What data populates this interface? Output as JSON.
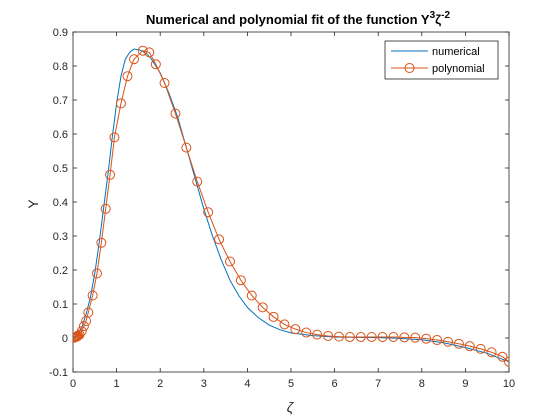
{
  "chart_data": {
    "type": "line",
    "title": "Numerical and polynomial fit of the function Y³ζ⁻²",
    "title_parts": {
      "base": "Numerical and polynomial fit of the function Y",
      "sup1": "3",
      "mid": "ζ",
      "sup2": "-2"
    },
    "xlabel": "ζ",
    "ylabel": "Y",
    "xlim": [
      0,
      10
    ],
    "ylim": [
      -0.1,
      0.9
    ],
    "xticks": [
      0,
      1,
      2,
      3,
      4,
      5,
      6,
      7,
      8,
      9,
      10
    ],
    "yticks": [
      -0.1,
      0,
      0.1,
      0.2,
      0.3,
      0.4,
      0.5,
      0.6,
      0.7,
      0.8,
      0.9
    ],
    "xtick_labels": [
      "0",
      "1",
      "2",
      "3",
      "4",
      "5",
      "6",
      "7",
      "8",
      "9",
      "10"
    ],
    "ytick_labels": [
      "-0.1",
      "0",
      "0.1",
      "0.2",
      "0.3",
      "0.4",
      "0.5",
      "0.6",
      "0.7",
      "0.8",
      "0.9"
    ],
    "grid": false,
    "legend_position": "top-right",
    "series": [
      {
        "name": "numerical",
        "color": "#0072BD",
        "marker": "none",
        "x": [
          0,
          0.1,
          0.2,
          0.3,
          0.4,
          0.5,
          0.6,
          0.7,
          0.8,
          0.9,
          1.0,
          1.1,
          1.2,
          1.3,
          1.4,
          1.5,
          1.6,
          1.7,
          1.8,
          1.9,
          2.0,
          2.2,
          2.4,
          2.6,
          2.8,
          3.0,
          3.2,
          3.4,
          3.6,
          3.8,
          4.0,
          4.25,
          4.5,
          4.75,
          5.0,
          5.5,
          6.0,
          6.5,
          7.0,
          7.5,
          8.0,
          8.5,
          9.0,
          9.5,
          10.0
        ],
        "y": [
          0.0,
          0.01,
          0.03,
          0.07,
          0.12,
          0.19,
          0.28,
          0.38,
          0.48,
          0.59,
          0.69,
          0.77,
          0.82,
          0.84,
          0.85,
          0.848,
          0.843,
          0.835,
          0.82,
          0.8,
          0.78,
          0.72,
          0.65,
          0.56,
          0.47,
          0.38,
          0.3,
          0.23,
          0.17,
          0.125,
          0.09,
          0.06,
          0.038,
          0.024,
          0.015,
          0.007,
          0.003,
          0.002,
          0.001,
          -0.001,
          -0.005,
          -0.014,
          -0.028,
          -0.045,
          -0.07
        ]
      },
      {
        "name": "polynomial",
        "color": "#D95319",
        "marker": "circle",
        "x": [
          0,
          0.02,
          0.04,
          0.06,
          0.08,
          0.1,
          0.12,
          0.15,
          0.2,
          0.25,
          0.3,
          0.35,
          0.45,
          0.55,
          0.65,
          0.75,
          0.85,
          0.95,
          1.1,
          1.25,
          1.4,
          1.6,
          1.75,
          1.9,
          2.1,
          2.35,
          2.6,
          2.85,
          3.1,
          3.35,
          3.6,
          3.85,
          4.1,
          4.35,
          4.6,
          4.85,
          5.1,
          5.35,
          5.6,
          5.85,
          6.1,
          6.35,
          6.6,
          6.85,
          7.1,
          7.35,
          7.6,
          7.85,
          8.1,
          8.35,
          8.6,
          8.85,
          9.1,
          9.35,
          9.6,
          9.85,
          10.0
        ],
        "y": [
          0.0,
          0.001,
          0.002,
          0.003,
          0.004,
          0.005,
          0.007,
          0.01,
          0.02,
          0.035,
          0.05,
          0.075,
          0.125,
          0.19,
          0.28,
          0.38,
          0.48,
          0.59,
          0.69,
          0.77,
          0.82,
          0.845,
          0.84,
          0.805,
          0.75,
          0.66,
          0.56,
          0.46,
          0.37,
          0.29,
          0.225,
          0.17,
          0.125,
          0.09,
          0.062,
          0.04,
          0.026,
          0.016,
          0.01,
          0.006,
          0.004,
          0.003,
          0.003,
          0.003,
          0.003,
          0.003,
          0.002,
          0.001,
          -0.002,
          -0.006,
          -0.011,
          -0.017,
          -0.024,
          -0.032,
          -0.042,
          -0.055,
          -0.07
        ]
      }
    ]
  }
}
